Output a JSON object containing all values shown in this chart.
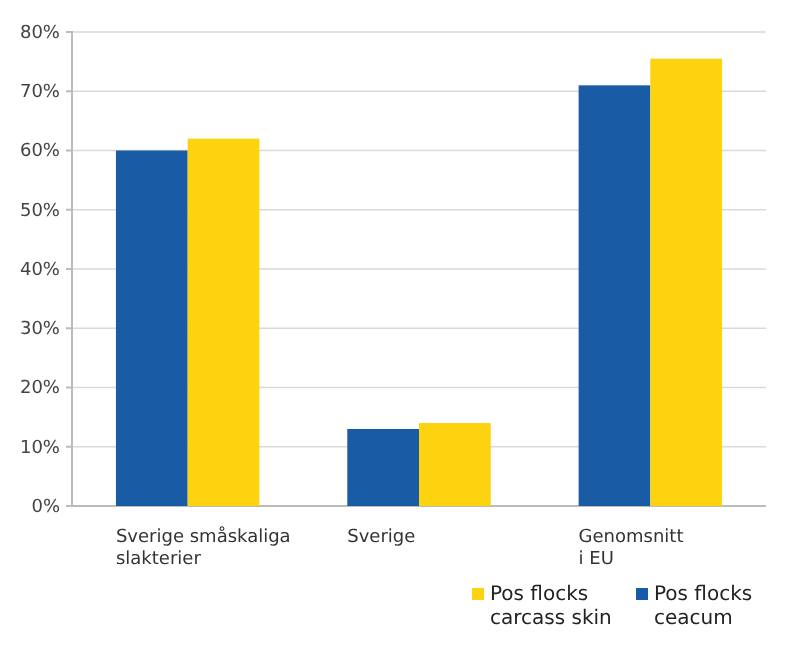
{
  "chart_data": {
    "type": "bar",
    "categories": [
      "Sverige småskaliga\nslakterier",
      "Sverige",
      "Genomsnitt\ni EU"
    ],
    "series": [
      {
        "name": "Pos flocks ceacum",
        "color": "#1a5ba6",
        "values": [
          60,
          13,
          71
        ]
      },
      {
        "name": "Pos flocks carcass skin",
        "color": "#fdd20e",
        "values": [
          62,
          14,
          75.5
        ]
      }
    ],
    "ylim": [
      0,
      80
    ],
    "yticks": [
      {
        "value": 0,
        "label": "0%"
      },
      {
        "value": 10,
        "label": "10%"
      },
      {
        "value": 20,
        "label": "20%"
      },
      {
        "value": 30,
        "label": "30%"
      },
      {
        "value": 40,
        "label": "40%"
      },
      {
        "value": 50,
        "label": "50%"
      },
      {
        "value": 60,
        "label": "60%"
      },
      {
        "value": 70,
        "label": "70%"
      },
      {
        "value": 80,
        "label": "80%"
      }
    ],
    "grid": "y",
    "legend": "bottom right"
  }
}
